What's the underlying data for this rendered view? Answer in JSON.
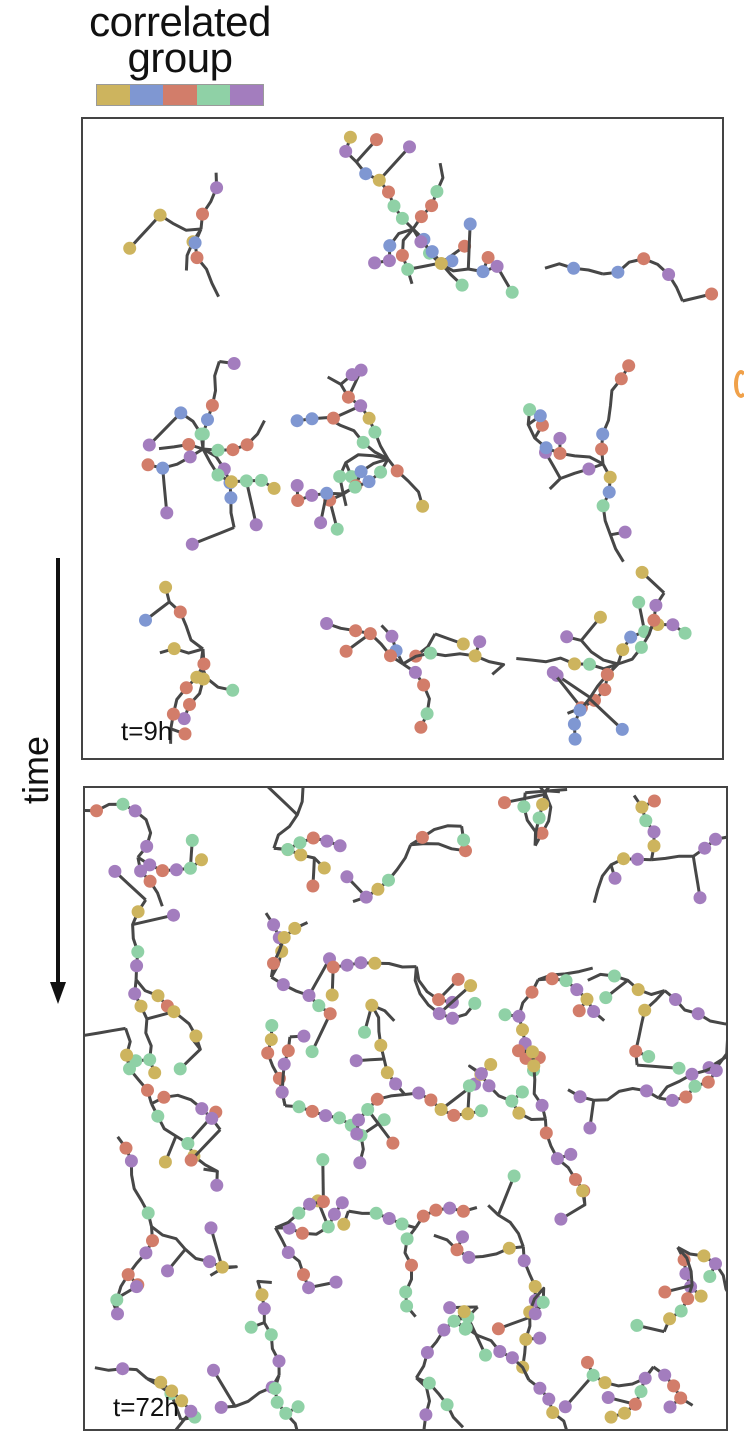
{
  "legend": {
    "title_line1": "correlated",
    "title_line2": "group",
    "groups": [
      {
        "color": "#CDB45E"
      },
      {
        "color": "#7F97D2"
      },
      {
        "color": "#D27D6A"
      },
      {
        "color": "#8FD1A6"
      },
      {
        "color": "#A37DBE"
      }
    ]
  },
  "axis": {
    "time_label": "time"
  },
  "panels": [
    {
      "label": "t=9h",
      "palette": [
        0,
        1,
        2,
        3,
        4
      ]
    },
    {
      "label": "t=72h",
      "palette": [
        0,
        2,
        3,
        4,
        4
      ]
    }
  ],
  "colors": {
    "branch": "#474747",
    "frame": "#444444"
  }
}
